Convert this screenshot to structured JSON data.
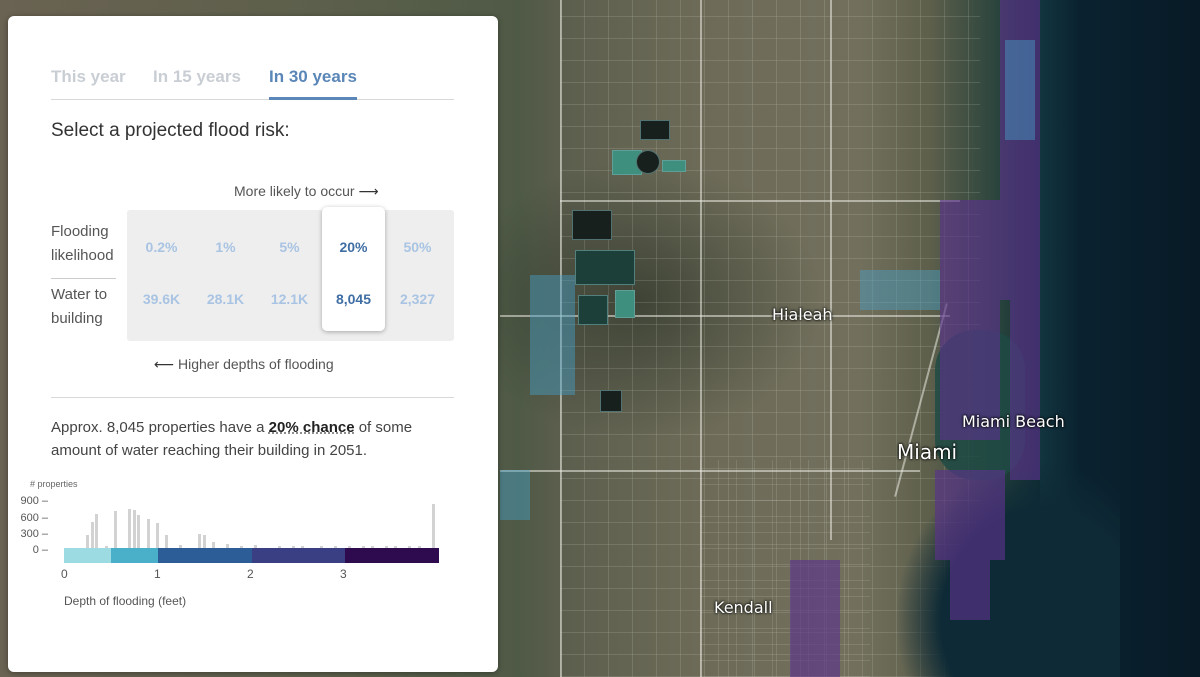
{
  "map": {
    "labels": {
      "hialeah": "Hialeah",
      "miami_beach": "Miami Beach",
      "miami": "Miami",
      "kendall": "Kendall"
    },
    "colors": {
      "high_flood": "#5a3290",
      "low_flood": "#46a0c8",
      "ocean": "#0a1a26"
    }
  },
  "tabs": [
    {
      "label": "This year",
      "active": false
    },
    {
      "label": "In 15 years",
      "active": false
    },
    {
      "label": "In 30 years",
      "active": true
    }
  ],
  "question": "Select a projected flood risk:",
  "more_likely_hint": "More likely to occur",
  "higher_depths_hint": "Higher depths of flooding",
  "row_labels": {
    "likelihood": [
      "Flooding",
      "likelihood"
    ],
    "water": [
      "Water to",
      "building"
    ]
  },
  "options": [
    {
      "likelihood": "0.2%",
      "count": "39.6K",
      "selected": false
    },
    {
      "likelihood": "1%",
      "count": "28.1K",
      "selected": false
    },
    {
      "likelihood": "5%",
      "count": "12.1K",
      "selected": false
    },
    {
      "likelihood": "20%",
      "count": "8,045",
      "selected": true
    },
    {
      "likelihood": "50%",
      "count": "2,327",
      "selected": false
    }
  ],
  "summary": {
    "prefix": "Approx. 8,045 properties have a",
    "chance": "20% chance",
    "suffix": "of some amount of water reaching their building in 2051."
  },
  "histogram": {
    "y_title": "# properties",
    "y_ticks": [
      "900",
      "600",
      "300",
      "0"
    ],
    "x_ticks": [
      "0",
      "1",
      "2",
      "3"
    ],
    "x_label": "Depth of flooding (feet)",
    "color_scale": [
      "#9ddbe3",
      "#4aafc9",
      "#2c5d97",
      "#393f82",
      "#2e0a4f"
    ]
  },
  "chart_data": {
    "type": "bar",
    "title": "",
    "ylabel": "# properties",
    "xlabel": "Depth of flooding (feet)",
    "ylim": [
      0,
      900
    ],
    "xlim": [
      0,
      4
    ],
    "x": [
      0.25,
      0.3,
      0.35,
      0.45,
      0.55,
      0.7,
      0.75,
      0.8,
      0.9,
      1.0,
      1.1,
      1.25,
      1.45,
      1.5,
      1.6,
      1.75,
      1.9,
      2.05,
      2.3,
      2.45,
      2.55,
      2.75,
      2.9,
      3.05,
      3.2,
      3.3,
      3.45,
      3.55,
      3.7,
      3.8,
      3.95
    ],
    "values": [
      250,
      480,
      640,
      30,
      700,
      740,
      720,
      620,
      540,
      470,
      250,
      50,
      260,
      250,
      120,
      70,
      30,
      60,
      20,
      40,
      30,
      30,
      20,
      40,
      20,
      20,
      20,
      30,
      10,
      20,
      820
    ]
  }
}
